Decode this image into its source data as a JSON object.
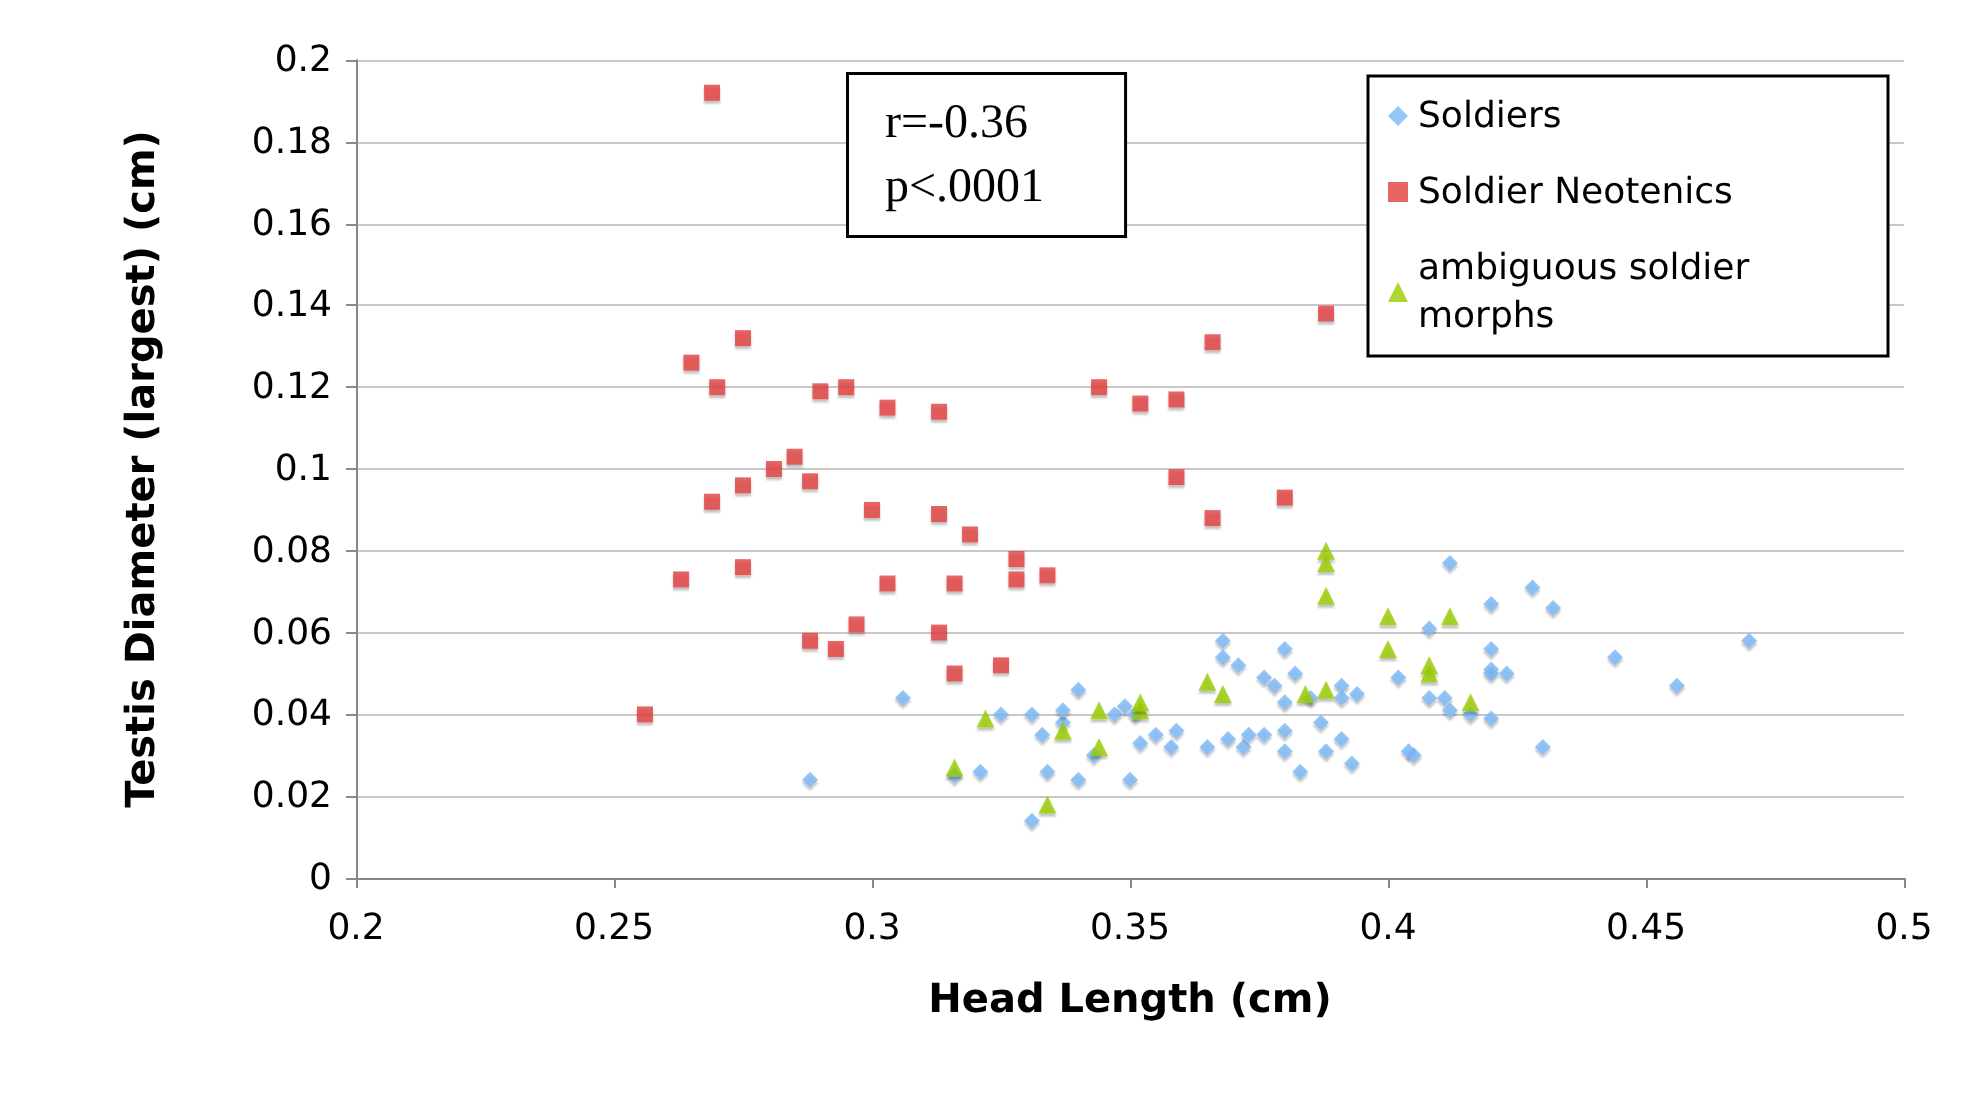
{
  "chart_data": {
    "type": "scatter",
    "xlabel": "Head Length (cm)",
    "ylabel": "Testis Diameter (largest) (cm)",
    "xlim": [
      0.2,
      0.5
    ],
    "xticks": [
      0.2,
      0.25,
      0.3,
      0.35,
      0.4,
      0.45,
      0.5
    ],
    "ylim": [
      0,
      0.2
    ],
    "yticks": [
      0,
      0.02,
      0.04,
      0.06,
      0.08,
      0.1,
      0.12,
      0.14,
      0.16,
      0.18,
      0.2
    ],
    "grid": "y",
    "legend": "top right",
    "annotations": [
      "r=-0.36\np<.0001"
    ],
    "series": [
      {
        "name": "Soldiers",
        "color": "#7ab8f5",
        "marker": "diamond",
        "x": [
          0.288,
          0.306,
          0.316,
          0.321,
          0.325,
          0.331,
          0.331,
          0.333,
          0.334,
          0.337,
          0.337,
          0.34,
          0.34,
          0.343,
          0.347,
          0.349,
          0.35,
          0.351,
          0.352,
          0.355,
          0.358,
          0.359,
          0.365,
          0.368,
          0.368,
          0.369,
          0.371,
          0.372,
          0.373,
          0.376,
          0.376,
          0.378,
          0.38,
          0.38,
          0.38,
          0.38,
          0.382,
          0.383,
          0.385,
          0.387,
          0.388,
          0.391,
          0.391,
          0.391,
          0.393,
          0.394,
          0.402,
          0.404,
          0.405,
          0.408,
          0.408,
          0.411,
          0.412,
          0.412,
          0.416,
          0.42,
          0.42,
          0.42,
          0.42,
          0.42,
          0.423,
          0.428,
          0.43,
          0.432,
          0.444,
          0.456,
          0.47
        ],
        "values": [
          0.024,
          0.044,
          0.025,
          0.026,
          0.04,
          0.014,
          0.04,
          0.035,
          0.026,
          0.038,
          0.041,
          0.046,
          0.024,
          0.03,
          0.04,
          0.042,
          0.024,
          0.04,
          0.033,
          0.035,
          0.032,
          0.036,
          0.032,
          0.058,
          0.054,
          0.034,
          0.052,
          0.032,
          0.035,
          0.049,
          0.035,
          0.047,
          0.056,
          0.043,
          0.036,
          0.031,
          0.05,
          0.026,
          0.044,
          0.038,
          0.031,
          0.047,
          0.044,
          0.034,
          0.028,
          0.045,
          0.049,
          0.031,
          0.03,
          0.061,
          0.044,
          0.044,
          0.077,
          0.041,
          0.04,
          0.067,
          0.056,
          0.051,
          0.05,
          0.039,
          0.05,
          0.071,
          0.032,
          0.066,
          0.054,
          0.047,
          0.058
        ]
      },
      {
        "name": "Soldier Neotenics",
        "color": "#e04040",
        "marker": "square",
        "x": [
          0.256,
          0.263,
          0.265,
          0.269,
          0.269,
          0.27,
          0.275,
          0.275,
          0.275,
          0.281,
          0.285,
          0.288,
          0.288,
          0.29,
          0.293,
          0.295,
          0.297,
          0.3,
          0.303,
          0.303,
          0.313,
          0.313,
          0.313,
          0.316,
          0.316,
          0.319,
          0.325,
          0.328,
          0.328,
          0.334,
          0.344,
          0.352,
          0.359,
          0.359,
          0.366,
          0.366,
          0.38,
          0.388
        ],
        "values": [
          0.04,
          0.073,
          0.126,
          0.192,
          0.092,
          0.12,
          0.132,
          0.096,
          0.076,
          0.1,
          0.103,
          0.097,
          0.058,
          0.119,
          0.056,
          0.12,
          0.062,
          0.09,
          0.115,
          0.072,
          0.114,
          0.089,
          0.06,
          0.072,
          0.05,
          0.084,
          0.052,
          0.078,
          0.073,
          0.074,
          0.12,
          0.116,
          0.117,
          0.098,
          0.131,
          0.088,
          0.093,
          0.138
        ]
      },
      {
        "name": "ambiguous soldier morphs",
        "color": "#99cc00",
        "marker": "triangle",
        "x": [
          0.316,
          0.322,
          0.334,
          0.337,
          0.344,
          0.344,
          0.352,
          0.352,
          0.365,
          0.368,
          0.384,
          0.388,
          0.388,
          0.388,
          0.388,
          0.4,
          0.4,
          0.408,
          0.408,
          0.412,
          0.416
        ],
        "values": [
          0.027,
          0.039,
          0.018,
          0.036,
          0.032,
          0.041,
          0.041,
          0.043,
          0.048,
          0.045,
          0.045,
          0.08,
          0.077,
          0.069,
          0.046,
          0.064,
          0.056,
          0.052,
          0.05,
          0.064,
          0.043
        ]
      }
    ]
  }
}
